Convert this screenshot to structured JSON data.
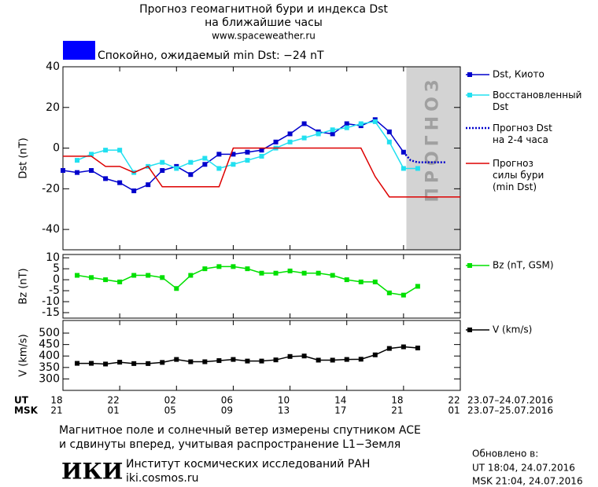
{
  "header": {
    "title": "Прогноз геомагнитной бури и индекса Dst",
    "subtitle": "на ближайшие часы",
    "site": "www.spaceweather.ru"
  },
  "status": {
    "text": "Спокойно, ожидаемый min Dst: −24 nT",
    "color": "#0000ff"
  },
  "x_axis": {
    "xlim": [
      0,
      28
    ],
    "xticks": [
      {
        "value": 0,
        "label": "18"
      },
      {
        "value": 4,
        "label": "22"
      },
      {
        "value": 8,
        "label": "02"
      },
      {
        "value": 12,
        "label": "06"
      },
      {
        "value": 16,
        "label": "10"
      },
      {
        "value": 20,
        "label": "14"
      },
      {
        "value": 24,
        "label": "18"
      },
      {
        "value": 28,
        "label": "22"
      }
    ],
    "msk_labels": [
      "21",
      "01",
      "05",
      "09",
      "13",
      "17",
      "21",
      "01"
    ],
    "ut_label": "UT",
    "msk_label": "MSK",
    "ut_dates": "23.07–24.07.2016",
    "msk_dates": "23.07–25.07.2016"
  },
  "chart_data": [
    {
      "type": "line",
      "ylabel": "Dst (nT)",
      "ylim": [
        -50,
        40
      ],
      "yticks": [
        40,
        20,
        0,
        -20,
        -40
      ],
      "forecast": {
        "xlim": [
          24.2,
          28
        ],
        "label": "ПРОГНОЗ",
        "color": "#d3d3d3"
      },
      "series": [
        {
          "name": "Dst, Киото",
          "color": "#0000cc",
          "marker": "square",
          "x": [
            0,
            1,
            2,
            3,
            4,
            5,
            6,
            7,
            8,
            9,
            10,
            11,
            12,
            13,
            14,
            15,
            16,
            17,
            18,
            19,
            20,
            21,
            22,
            23,
            24
          ],
          "values": [
            -11,
            -12,
            -11,
            -15,
            -17,
            -21,
            -18,
            -11,
            -9,
            -13,
            -8,
            -3,
            -3,
            -2,
            -1,
            3,
            7,
            12,
            8,
            7,
            12,
            11,
            14,
            8,
            -2
          ]
        },
        {
          "name": "Восстановленный\nDst",
          "color": "#22e0f0",
          "marker": "square",
          "x": [
            1,
            2,
            3,
            4,
            5,
            6,
            7,
            8,
            9,
            10,
            11,
            12,
            13,
            14,
            15,
            16,
            17,
            18,
            19,
            20,
            21,
            22,
            23,
            24,
            25
          ],
          "values": [
            -6,
            -3,
            -1,
            -1,
            -12,
            -9,
            -7,
            -10,
            -7,
            -5,
            -10,
            -8,
            -6,
            -4,
            0,
            3,
            5,
            7,
            9,
            10,
            12,
            13,
            3,
            -10,
            -10
          ]
        },
        {
          "name": "Прогноз Dst\nна 2-4 часа",
          "color": "#0000cc",
          "dash": "dotted",
          "x": [
            24,
            24.5,
            25,
            27
          ],
          "values": [
            -2,
            -6,
            -7,
            -7
          ]
        },
        {
          "name": "Прогноз\nсилы бури\n(min Dst)",
          "color": "#dd0000",
          "x": [
            0,
            2,
            3,
            4,
            5,
            6,
            7,
            11,
            12,
            21,
            22,
            23,
            28
          ],
          "values": [
            -4,
            -4,
            -9,
            -9,
            -12,
            -9,
            -19,
            -19,
            0,
            0,
            -14,
            -24,
            -24
          ]
        }
      ]
    },
    {
      "type": "line",
      "ylabel": "Bz (nT)",
      "ylim": [
        -17.5,
        11.5
      ],
      "yticks": [
        10,
        5,
        0,
        -5,
        -10,
        -15
      ],
      "series": [
        {
          "name": "Bz (nT, GSM)",
          "color": "#00e000",
          "marker": "square",
          "x": [
            1,
            2,
            3,
            4,
            5,
            6,
            7,
            8,
            9,
            10,
            11,
            12,
            13,
            14,
            15,
            16,
            17,
            18,
            19,
            20,
            21,
            22,
            23,
            24,
            25
          ],
          "values": [
            2,
            1,
            0,
            -1,
            2,
            2,
            1,
            -4,
            2,
            5,
            6,
            6,
            5,
            3,
            3,
            4,
            3,
            3,
            2,
            0,
            -1,
            -1,
            -6,
            -7,
            -3
          ]
        }
      ]
    },
    {
      "type": "line",
      "ylabel": "V (km/s)",
      "ylim": [
        250,
        555
      ],
      "yticks": [
        500,
        450,
        400,
        350,
        300
      ],
      "series": [
        {
          "name": "V (km/s)",
          "color": "#000000",
          "marker": "square",
          "x": [
            1,
            2,
            3,
            4,
            5,
            6,
            7,
            8,
            9,
            10,
            11,
            12,
            13,
            14,
            15,
            16,
            17,
            18,
            19,
            20,
            21,
            22,
            23,
            24,
            25
          ],
          "values": [
            368,
            368,
            365,
            373,
            367,
            367,
            372,
            385,
            375,
            375,
            380,
            385,
            378,
            378,
            383,
            398,
            400,
            382,
            382,
            385,
            386,
            405,
            433,
            440,
            435
          ]
        }
      ]
    }
  ],
  "footer": {
    "note1": "Магнитное поле и солнечный ветер измерены спутником ACE",
    "note2": "и сдвинуты вперед, учитывая распространение L1−Земля",
    "logo": "ИКИ",
    "institute": "Институт космических исследований РАН",
    "institute_site": "iki.cosmos.ru",
    "updated": "Обновлено в:",
    "updated_ut": "UT  18:04, 24.07.2016",
    "updated_msk": "MSK 21:04, 24.07.2016"
  }
}
